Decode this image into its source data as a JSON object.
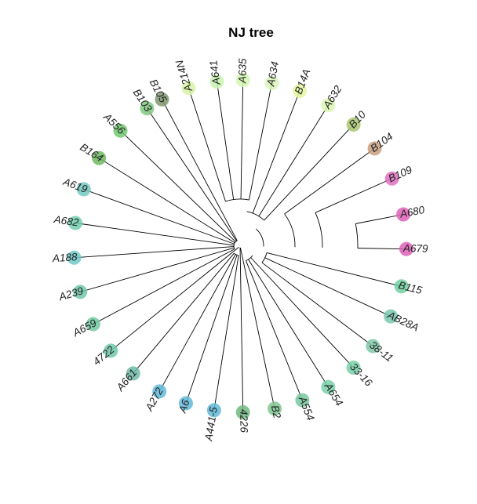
{
  "title": "NJ tree",
  "tips": [
    {
      "label": "A214N",
      "angle": -108,
      "color": "#d8f5a8"
    },
    {
      "label": "A641",
      "angle": -98,
      "color": "#c8f5b0"
    },
    {
      "label": "A635",
      "angle": -89,
      "color": "#d4f7b0"
    },
    {
      "label": "A634",
      "angle": -79,
      "color": "#d8f5b8"
    },
    {
      "label": "B14A",
      "angle": -69,
      "color": "#e4f7a0"
    },
    {
      "label": "A632",
      "angle": -58,
      "color": "#dcf5b0"
    },
    {
      "label": "B10",
      "angle": -47,
      "color": "#a8c870"
    },
    {
      "label": "B104",
      "angle": -36,
      "color": "#c8a080"
    },
    {
      "label": "B109",
      "angle": -24,
      "color": "#e070c0"
    },
    {
      "label": "A680",
      "angle": -11,
      "color": "#e060b8"
    },
    {
      "label": "A679",
      "angle": 1,
      "color": "#e060b8"
    },
    {
      "label": "B115",
      "angle": 14,
      "color": "#70d0a0"
    },
    {
      "label": "AB28A",
      "angle": 25,
      "color": "#78c8b0"
    },
    {
      "label": "38-11",
      "angle": 37,
      "color": "#80c8a8"
    },
    {
      "label": "33-16",
      "angle": 47,
      "color": "#78d0a8"
    },
    {
      "label": "A654",
      "angle": 58,
      "color": "#78d0a8"
    },
    {
      "label": "A554",
      "angle": 68,
      "color": "#78c8a0"
    },
    {
      "label": "B2",
      "angle": 78,
      "color": "#80c890"
    },
    {
      "label": "4226",
      "angle": 89,
      "color": "#70b880"
    },
    {
      "label": "A441-5",
      "angle": 99,
      "color": "#60b8d8"
    },
    {
      "label": "A6",
      "angle": 109,
      "color": "#60b8d8"
    },
    {
      "label": "A272",
      "angle": 119,
      "color": "#60b8d8"
    },
    {
      "label": "A661",
      "angle": 130,
      "color": "#70b8a8"
    },
    {
      "label": "4722",
      "angle": 141,
      "color": "#70c8a8"
    },
    {
      "label": "A659",
      "angle": 152,
      "color": "#70c8a0"
    },
    {
      "label": "A239",
      "angle": 164,
      "color": "#70c8a8"
    },
    {
      "label": "A188",
      "angle": 176,
      "color": "#70c8c8"
    },
    {
      "label": "A682",
      "angle": 188,
      "color": "#70d0b0"
    },
    {
      "label": "A619",
      "angle": 200,
      "color": "#70c8c0"
    },
    {
      "label": "B164",
      "angle": 212,
      "color": "#70b860"
    },
    {
      "label": "A556",
      "angle": 224,
      "color": "#70c870"
    },
    {
      "label": "B103",
      "angle": 236,
      "color": "#80c880"
    },
    {
      "label": "B105",
      "angle": 242,
      "color": "#809870"
    }
  ]
}
